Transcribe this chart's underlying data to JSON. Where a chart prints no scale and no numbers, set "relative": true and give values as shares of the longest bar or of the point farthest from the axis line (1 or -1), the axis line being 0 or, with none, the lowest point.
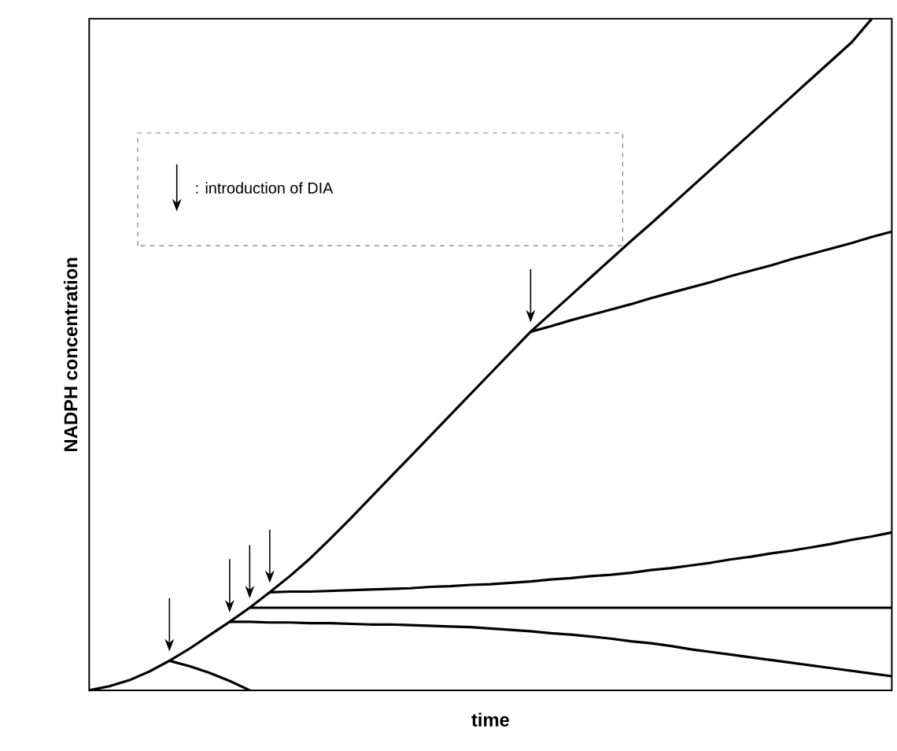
{
  "chart_data": {
    "type": "line",
    "relative": true,
    "xlabel": "time",
    "ylabel": "NADPH concentration",
    "categories": [
      null,
      null,
      null,
      null,
      null,
      null,
      null,
      null,
      null,
      null,
      null,
      null,
      null,
      null,
      null,
      null,
      null,
      null,
      null,
      null,
      null,
      null,
      null,
      null,
      null,
      null,
      null,
      null,
      null,
      null,
      null,
      null,
      null,
      null,
      null,
      null,
      null,
      null,
      null,
      null,
      null
    ],
    "annotations": [
      ": introduction of DIA"
    ],
    "series": [
      {
        "color": "#000000",
        "values": [
          0,
          0.006,
          0.015,
          0.028,
          0.044,
          0.062,
          0.082,
          0.102,
          0.123,
          0.146,
          0.17,
          0.196,
          0.225,
          0.255,
          0.286,
          0.317,
          0.348,
          0.379,
          0.41,
          0.441,
          0.472,
          0.503,
          0.534,
          0.561,
          0.588,
          0.615,
          0.642,
          0.669,
          0.695,
          0.722,
          0.749,
          0.776,
          0.803,
          0.83,
          0.857,
          0.884,
          0.911,
          0.938,
          0.965,
          1.0,
          null
        ]
      },
      {
        "color": "#000000",
        "values": [
          null,
          null,
          null,
          null,
          null,
          null,
          null,
          null,
          null,
          null,
          null,
          null,
          null,
          null,
          null,
          null,
          null,
          null,
          null,
          null,
          null,
          null,
          0.534,
          0.542,
          0.551,
          0.559,
          0.567,
          0.575,
          0.584,
          0.592,
          0.6,
          0.608,
          0.617,
          0.625,
          0.633,
          0.642,
          0.65,
          0.658,
          0.666,
          0.675,
          0.683
        ]
      },
      {
        "color": "#000000",
        "values": [
          null,
          null,
          null,
          null,
          null,
          null,
          null,
          null,
          null,
          0.146,
          0.147,
          0.147,
          0.148,
          0.149,
          0.15,
          0.151,
          0.152,
          0.154,
          0.155,
          0.157,
          0.158,
          0.16,
          0.162,
          0.165,
          0.167,
          0.17,
          0.172,
          0.175,
          0.179,
          0.182,
          0.186,
          0.19,
          0.195,
          0.199,
          0.204,
          0.208,
          0.213,
          0.218,
          0.224,
          0.229,
          0.235
        ]
      },
      {
        "color": "#000000",
        "values": [
          null,
          null,
          null,
          null,
          null,
          null,
          null,
          null,
          0.123,
          0.123,
          0.123,
          0.123,
          0.123,
          0.123,
          0.123,
          0.123,
          0.123,
          0.123,
          0.123,
          0.123,
          0.123,
          0.123,
          0.123,
          0.123,
          0.123,
          0.123,
          0.123,
          0.123,
          0.123,
          0.123,
          0.123,
          0.123,
          0.123,
          0.123,
          0.123,
          0.123,
          0.123,
          0.123,
          0.123,
          0.123,
          0.123
        ]
      },
      {
        "color": "#000000",
        "values": [
          null,
          null,
          null,
          null,
          null,
          null,
          null,
          0.102,
          0.102,
          0.101,
          0.101,
          0.1,
          0.1,
          0.099,
          0.098,
          0.098,
          0.097,
          0.096,
          0.095,
          0.094,
          0.092,
          0.09,
          0.088,
          0.085,
          0.083,
          0.08,
          0.077,
          0.073,
          0.07,
          0.066,
          0.061,
          0.057,
          0.053,
          0.049,
          0.045,
          0.041,
          0.037,
          0.033,
          0.029,
          0.025,
          0.021
        ]
      },
      {
        "color": "#000000",
        "values": [
          null,
          null,
          null,
          null,
          0.044,
          0.036,
          0.026,
          0.014,
          0,
          null,
          null,
          null,
          null,
          null,
          null,
          null,
          null,
          null,
          null,
          null,
          null,
          null,
          null,
          null,
          null,
          null,
          null,
          null,
          null,
          null,
          null,
          null,
          null,
          null,
          null,
          null,
          null,
          null,
          null,
          null,
          null
        ]
      }
    ]
  }
}
